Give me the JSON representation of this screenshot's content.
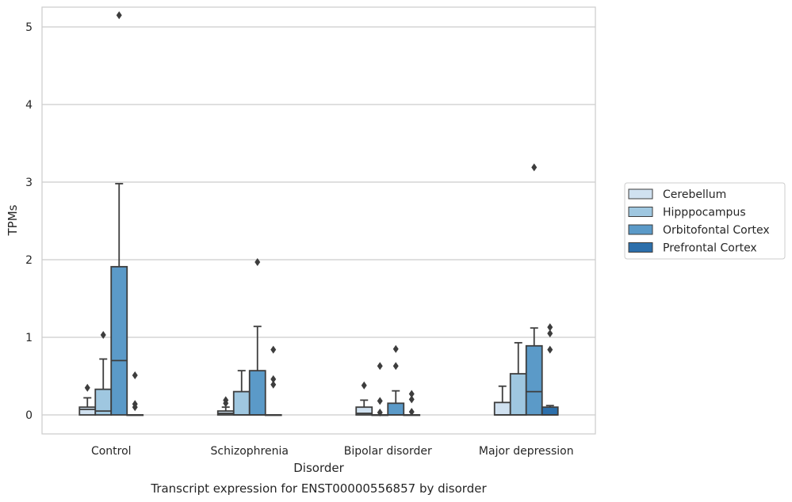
{
  "chart_data": {
    "type": "box",
    "xlabel": "Disorder",
    "ylabel": "TPMs",
    "caption": "Transcript expression for ENST00000556857 by disorder",
    "ylim": [
      -0.25,
      5.4
    ],
    "yticks": [
      0,
      1,
      2,
      3,
      4,
      5
    ],
    "grid": "horizontal",
    "legend_position": "right",
    "categories": [
      "Control",
      "Schizophrenia",
      "Bipolar disorder",
      "Major depression"
    ],
    "series": [
      {
        "name": "Cerebellum",
        "color": "#d0e1f0",
        "boxes": [
          {
            "whislo": 0,
            "q1": 0,
            "med": 0.07,
            "q3": 0.1,
            "whishi": 0.22,
            "fliers": [
              0.35
            ]
          },
          {
            "whislo": 0,
            "q1": 0,
            "med": 0.02,
            "q3": 0.05,
            "whishi": 0.1,
            "fliers": [
              0.15,
              0.19
            ]
          },
          {
            "whislo": 0,
            "q1": 0,
            "med": 0.02,
            "q3": 0.1,
            "whishi": 0.19,
            "fliers": [
              0.38
            ]
          },
          {
            "whislo": 0,
            "q1": 0,
            "med": 0.0,
            "q3": 0.16,
            "whishi": 0.37,
            "fliers": []
          }
        ]
      },
      {
        "name": "Hipppocampus",
        "color": "#9fc7e0",
        "boxes": [
          {
            "whislo": 0,
            "q1": 0,
            "med": 0.05,
            "q3": 0.33,
            "whishi": 0.72,
            "fliers": [
              1.03
            ]
          },
          {
            "whislo": 0,
            "q1": 0,
            "med": 0.0,
            "q3": 0.3,
            "whishi": 0.57,
            "fliers": []
          },
          {
            "whislo": 0,
            "q1": 0,
            "med": 0.0,
            "q3": 0.0,
            "whishi": 0.0,
            "fliers": [
              0.63,
              0.18,
              0.03
            ]
          },
          {
            "whislo": 0,
            "q1": 0,
            "med": 0.0,
            "q3": 0.53,
            "whishi": 0.93,
            "fliers": []
          }
        ]
      },
      {
        "name": "Orbitofontal Cortex",
        "color": "#5b9ac8",
        "boxes": [
          {
            "whislo": 0,
            "q1": 0,
            "med": 0.7,
            "q3": 1.91,
            "whishi": 2.98,
            "fliers": [
              5.15
            ]
          },
          {
            "whislo": 0,
            "q1": 0,
            "med": 0.0,
            "q3": 0.57,
            "whishi": 1.14,
            "fliers": [
              1.97
            ]
          },
          {
            "whislo": 0,
            "q1": 0,
            "med": 0.0,
            "q3": 0.15,
            "whishi": 0.31,
            "fliers": [
              0.85,
              0.63
            ]
          },
          {
            "whislo": 0,
            "q1": 0,
            "med": 0.3,
            "q3": 0.89,
            "whishi": 1.12,
            "fliers": [
              3.19
            ]
          }
        ]
      },
      {
        "name": "Prefrontal Cortex",
        "color": "#2c6fab",
        "boxes": [
          {
            "whislo": 0,
            "q1": 0,
            "med": 0.0,
            "q3": 0.0,
            "whishi": 0.0,
            "fliers": [
              0.51,
              0.14,
              0.1
            ]
          },
          {
            "whislo": 0,
            "q1": 0,
            "med": 0.0,
            "q3": 0.0,
            "whishi": 0.0,
            "fliers": [
              0.84,
              0.46,
              0.39
            ]
          },
          {
            "whislo": 0,
            "q1": 0,
            "med": 0.0,
            "q3": 0.0,
            "whishi": 0.0,
            "fliers": [
              0.27,
              0.2,
              0.04
            ]
          },
          {
            "whislo": 0,
            "q1": 0,
            "med": 0.0,
            "q3": 0.1,
            "whishi": 0.12,
            "fliers": [
              1.13,
              1.05,
              0.84
            ]
          }
        ]
      }
    ]
  }
}
